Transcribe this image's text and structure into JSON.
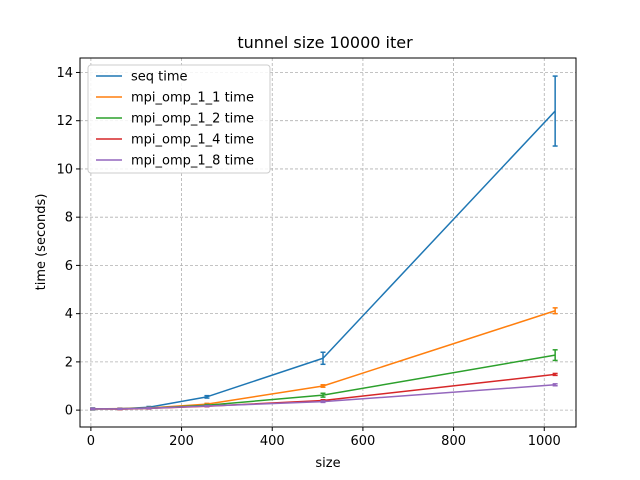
{
  "chart_data": {
    "type": "line",
    "title": "tunnel size 10000 iter",
    "xlabel": "size",
    "ylabel": "time (seconds)",
    "xlim": [
      -24,
      1070
    ],
    "ylim": [
      -0.7,
      14.6
    ],
    "x_ticks": [
      0,
      200,
      400,
      600,
      800,
      1000
    ],
    "y_ticks": [
      0,
      2,
      4,
      6,
      8,
      10,
      12,
      14
    ],
    "grid": true,
    "legend_position": "top-left",
    "x": [
      4,
      64,
      128,
      256,
      512,
      1024
    ],
    "series": [
      {
        "name": "seq time",
        "color": "#1f77b4",
        "values": [
          0.05,
          0.06,
          0.12,
          0.55,
          2.15,
          12.4
        ],
        "error": [
          0.04,
          0.02,
          0.03,
          0.05,
          0.25,
          1.45
        ]
      },
      {
        "name": "mpi_omp_1_1 time",
        "color": "#ff7f0e",
        "values": [
          0.05,
          0.06,
          0.09,
          0.25,
          1.0,
          4.12
        ],
        "error": [
          0.02,
          0.02,
          0.02,
          0.03,
          0.05,
          0.12
        ]
      },
      {
        "name": "mpi_omp_1_2 time",
        "color": "#2ca02c",
        "values": [
          0.05,
          0.05,
          0.08,
          0.2,
          0.62,
          2.28
        ],
        "error": [
          0.02,
          0.02,
          0.02,
          0.03,
          0.08,
          0.22
        ]
      },
      {
        "name": "mpi_omp_1_4 time",
        "color": "#d62728",
        "values": [
          0.05,
          0.04,
          0.07,
          0.16,
          0.4,
          1.48
        ],
        "error": [
          0.02,
          0.02,
          0.02,
          0.02,
          0.03,
          0.04
        ]
      },
      {
        "name": "mpi_omp_1_8 time",
        "color": "#9467bd",
        "values": [
          0.05,
          0.05,
          0.08,
          0.17,
          0.35,
          1.05
        ],
        "error": [
          0.02,
          0.02,
          0.02,
          0.02,
          0.03,
          0.04
        ]
      }
    ]
  }
}
